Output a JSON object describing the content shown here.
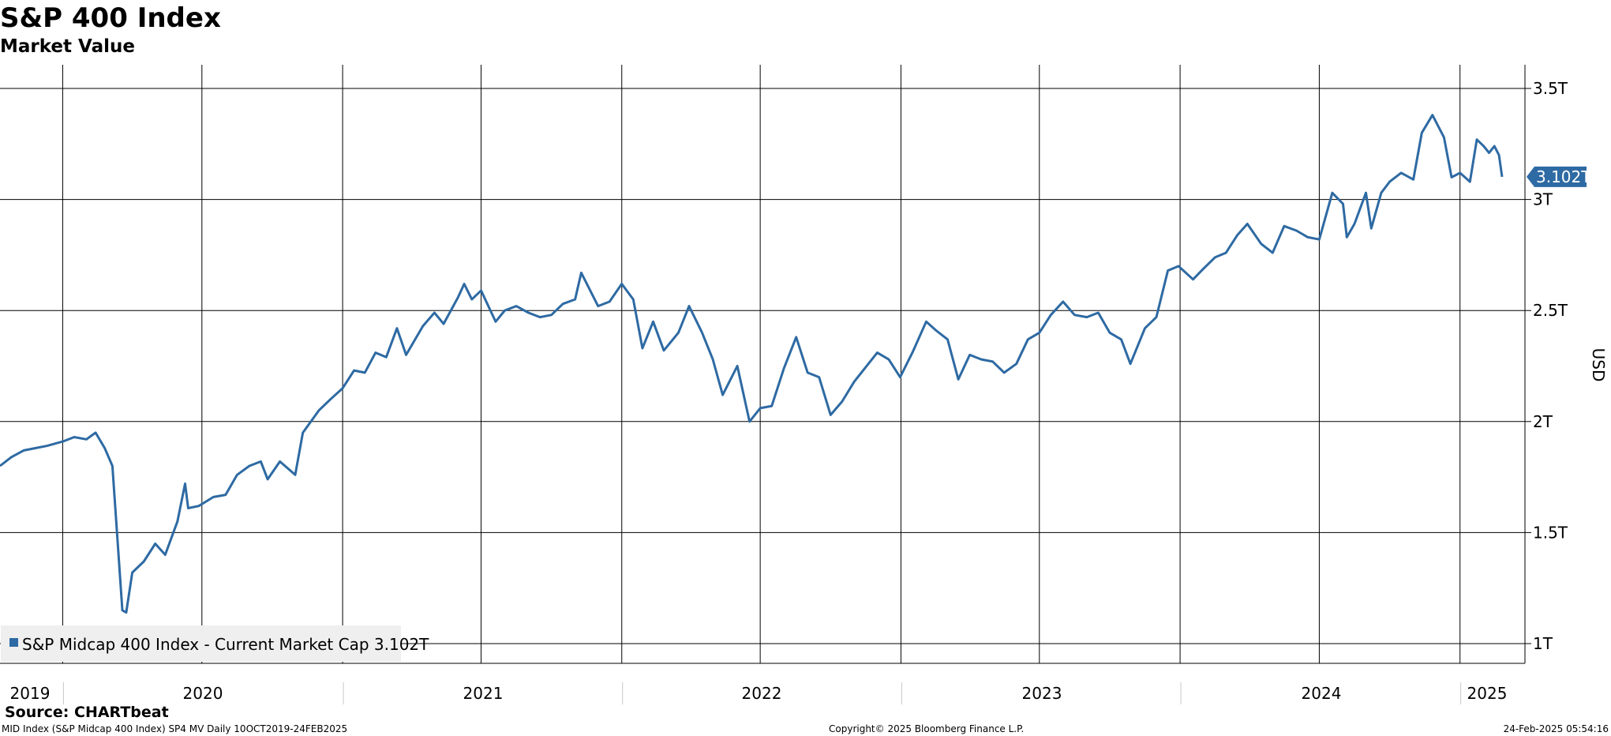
{
  "title": "S&P 400 Index",
  "subtitle": "Market Value",
  "colors": {
    "series": "#2e6aa3",
    "grid": "#000000",
    "badge_bg": "#2e6aa3",
    "badge_text": "#ffffff",
    "legend_bg": "#efefef"
  },
  "legend": {
    "label": "S&P Midcap 400 Index - Current Market Cap 3.102T",
    "placement": "bottom-left"
  },
  "current_badge": "3.102T",
  "footer": {
    "source": "Source: CHARTbeat",
    "ticker_info": "MID Index (S&P Midcap 400 Index) SP4 MV  Daily 10OCT2019-24FEB2025",
    "copyright": "Copyright© 2025 Bloomberg Finance L.P.",
    "timestamp": "24-Feb-2025 05:54:16"
  },
  "chart_data": {
    "type": "line",
    "title": "S&P 400 Index",
    "subtitle": "Market Value",
    "ylabel": "USD",
    "y_unit": "T",
    "ylim": [
      1,
      3.55
    ],
    "xlim": [
      "2019-10-10",
      "2025-02-24"
    ],
    "y_ticks": [
      {
        "value": 1.0,
        "label": "1T"
      },
      {
        "value": 1.5,
        "label": "1.5T"
      },
      {
        "value": 2.0,
        "label": "2T"
      },
      {
        "value": 2.5,
        "label": "2.5T"
      },
      {
        "value": 3.0,
        "label": "3T"
      },
      {
        "value": 3.5,
        "label": "3.5T"
      }
    ],
    "x_year_labels": [
      "2019",
      "2020",
      "2021",
      "2022",
      "2023",
      "2024",
      "2025"
    ],
    "grid": true,
    "legend_position": "bottom-left",
    "series": [
      {
        "name": "S&P Midcap 400 Index - Current Market Cap",
        "last_value": 3.102,
        "points": [
          [
            "2019-10-10",
            1.8
          ],
          [
            "2019-10-25",
            1.84
          ],
          [
            "2019-11-10",
            1.87
          ],
          [
            "2019-11-25",
            1.88
          ],
          [
            "2019-12-10",
            1.89
          ],
          [
            "2019-12-31",
            1.91
          ],
          [
            "2020-01-15",
            1.93
          ],
          [
            "2020-01-31",
            1.92
          ],
          [
            "2020-02-12",
            1.95
          ],
          [
            "2020-02-24",
            1.88
          ],
          [
            "2020-03-05",
            1.8
          ],
          [
            "2020-03-12",
            1.45
          ],
          [
            "2020-03-18",
            1.15
          ],
          [
            "2020-03-23",
            1.14
          ],
          [
            "2020-03-31",
            1.32
          ],
          [
            "2020-04-15",
            1.37
          ],
          [
            "2020-04-30",
            1.45
          ],
          [
            "2020-05-13",
            1.4
          ],
          [
            "2020-05-29",
            1.55
          ],
          [
            "2020-06-08",
            1.72
          ],
          [
            "2020-06-12",
            1.61
          ],
          [
            "2020-06-26",
            1.62
          ],
          [
            "2020-07-15",
            1.66
          ],
          [
            "2020-07-31",
            1.67
          ],
          [
            "2020-08-15",
            1.76
          ],
          [
            "2020-08-31",
            1.8
          ],
          [
            "2020-09-15",
            1.82
          ],
          [
            "2020-09-24",
            1.74
          ],
          [
            "2020-10-10",
            1.82
          ],
          [
            "2020-10-30",
            1.76
          ],
          [
            "2020-11-09",
            1.95
          ],
          [
            "2020-11-30",
            2.05
          ],
          [
            "2020-12-15",
            2.1
          ],
          [
            "2020-12-31",
            2.15
          ],
          [
            "2021-01-15",
            2.23
          ],
          [
            "2021-01-29",
            2.22
          ],
          [
            "2021-02-12",
            2.31
          ],
          [
            "2021-02-26",
            2.29
          ],
          [
            "2021-03-12",
            2.42
          ],
          [
            "2021-03-24",
            2.3
          ],
          [
            "2021-04-15",
            2.43
          ],
          [
            "2021-04-30",
            2.49
          ],
          [
            "2021-05-12",
            2.44
          ],
          [
            "2021-05-31",
            2.56
          ],
          [
            "2021-06-08",
            2.62
          ],
          [
            "2021-06-18",
            2.55
          ],
          [
            "2021-06-30",
            2.59
          ],
          [
            "2021-07-19",
            2.45
          ],
          [
            "2021-07-31",
            2.5
          ],
          [
            "2021-08-15",
            2.52
          ],
          [
            "2021-08-31",
            2.49
          ],
          [
            "2021-09-15",
            2.47
          ],
          [
            "2021-09-30",
            2.48
          ],
          [
            "2021-10-15",
            2.53
          ],
          [
            "2021-10-31",
            2.55
          ],
          [
            "2021-11-08",
            2.67
          ],
          [
            "2021-11-30",
            2.52
          ],
          [
            "2021-12-15",
            2.54
          ],
          [
            "2021-12-31",
            2.62
          ],
          [
            "2022-01-15",
            2.55
          ],
          [
            "2022-01-27",
            2.33
          ],
          [
            "2022-02-10",
            2.45
          ],
          [
            "2022-02-24",
            2.32
          ],
          [
            "2022-03-15",
            2.4
          ],
          [
            "2022-03-29",
            2.52
          ],
          [
            "2022-04-15",
            2.4
          ],
          [
            "2022-04-29",
            2.28
          ],
          [
            "2022-05-12",
            2.12
          ],
          [
            "2022-05-31",
            2.25
          ],
          [
            "2022-06-16",
            2.0
          ],
          [
            "2022-06-30",
            2.06
          ],
          [
            "2022-07-15",
            2.07
          ],
          [
            "2022-07-31",
            2.24
          ],
          [
            "2022-08-16",
            2.38
          ],
          [
            "2022-08-31",
            2.22
          ],
          [
            "2022-09-15",
            2.2
          ],
          [
            "2022-09-30",
            2.03
          ],
          [
            "2022-10-15",
            2.09
          ],
          [
            "2022-10-31",
            2.18
          ],
          [
            "2022-11-30",
            2.31
          ],
          [
            "2022-12-15",
            2.28
          ],
          [
            "2022-12-30",
            2.2
          ],
          [
            "2023-01-15",
            2.31
          ],
          [
            "2023-02-02",
            2.45
          ],
          [
            "2023-02-15",
            2.41
          ],
          [
            "2023-03-02",
            2.37
          ],
          [
            "2023-03-16",
            2.19
          ],
          [
            "2023-03-31",
            2.3
          ],
          [
            "2023-04-15",
            2.28
          ],
          [
            "2023-04-30",
            2.27
          ],
          [
            "2023-05-15",
            2.22
          ],
          [
            "2023-05-31",
            2.26
          ],
          [
            "2023-06-15",
            2.37
          ],
          [
            "2023-06-30",
            2.4
          ],
          [
            "2023-07-15",
            2.48
          ],
          [
            "2023-07-31",
            2.54
          ],
          [
            "2023-08-15",
            2.48
          ],
          [
            "2023-08-31",
            2.47
          ],
          [
            "2023-09-15",
            2.49
          ],
          [
            "2023-09-30",
            2.4
          ],
          [
            "2023-10-15",
            2.37
          ],
          [
            "2023-10-27",
            2.26
          ],
          [
            "2023-11-15",
            2.42
          ],
          [
            "2023-11-30",
            2.47
          ],
          [
            "2023-12-15",
            2.68
          ],
          [
            "2023-12-29",
            2.7
          ],
          [
            "2024-01-17",
            2.64
          ],
          [
            "2024-01-31",
            2.69
          ],
          [
            "2024-02-15",
            2.74
          ],
          [
            "2024-02-29",
            2.76
          ],
          [
            "2024-03-15",
            2.84
          ],
          [
            "2024-03-28",
            2.89
          ],
          [
            "2024-04-15",
            2.8
          ],
          [
            "2024-04-30",
            2.76
          ],
          [
            "2024-05-15",
            2.88
          ],
          [
            "2024-05-31",
            2.86
          ],
          [
            "2024-06-15",
            2.83
          ],
          [
            "2024-06-30",
            2.82
          ],
          [
            "2024-07-17",
            3.03
          ],
          [
            "2024-07-31",
            2.98
          ],
          [
            "2024-08-05",
            2.83
          ],
          [
            "2024-08-15",
            2.89
          ],
          [
            "2024-08-30",
            3.03
          ],
          [
            "2024-09-06",
            2.87
          ],
          [
            "2024-09-19",
            3.03
          ],
          [
            "2024-09-30",
            3.08
          ],
          [
            "2024-10-15",
            3.12
          ],
          [
            "2024-10-31",
            3.09
          ],
          [
            "2024-11-11",
            3.3
          ],
          [
            "2024-11-25",
            3.38
          ],
          [
            "2024-12-10",
            3.28
          ],
          [
            "2024-12-20",
            3.1
          ],
          [
            "2024-12-31",
            3.12
          ],
          [
            "2025-01-13",
            3.08
          ],
          [
            "2025-01-22",
            3.27
          ],
          [
            "2025-01-31",
            3.24
          ],
          [
            "2025-02-07",
            3.21
          ],
          [
            "2025-02-14",
            3.24
          ],
          [
            "2025-02-20",
            3.2
          ],
          [
            "2025-02-24",
            3.102
          ]
        ]
      }
    ]
  }
}
